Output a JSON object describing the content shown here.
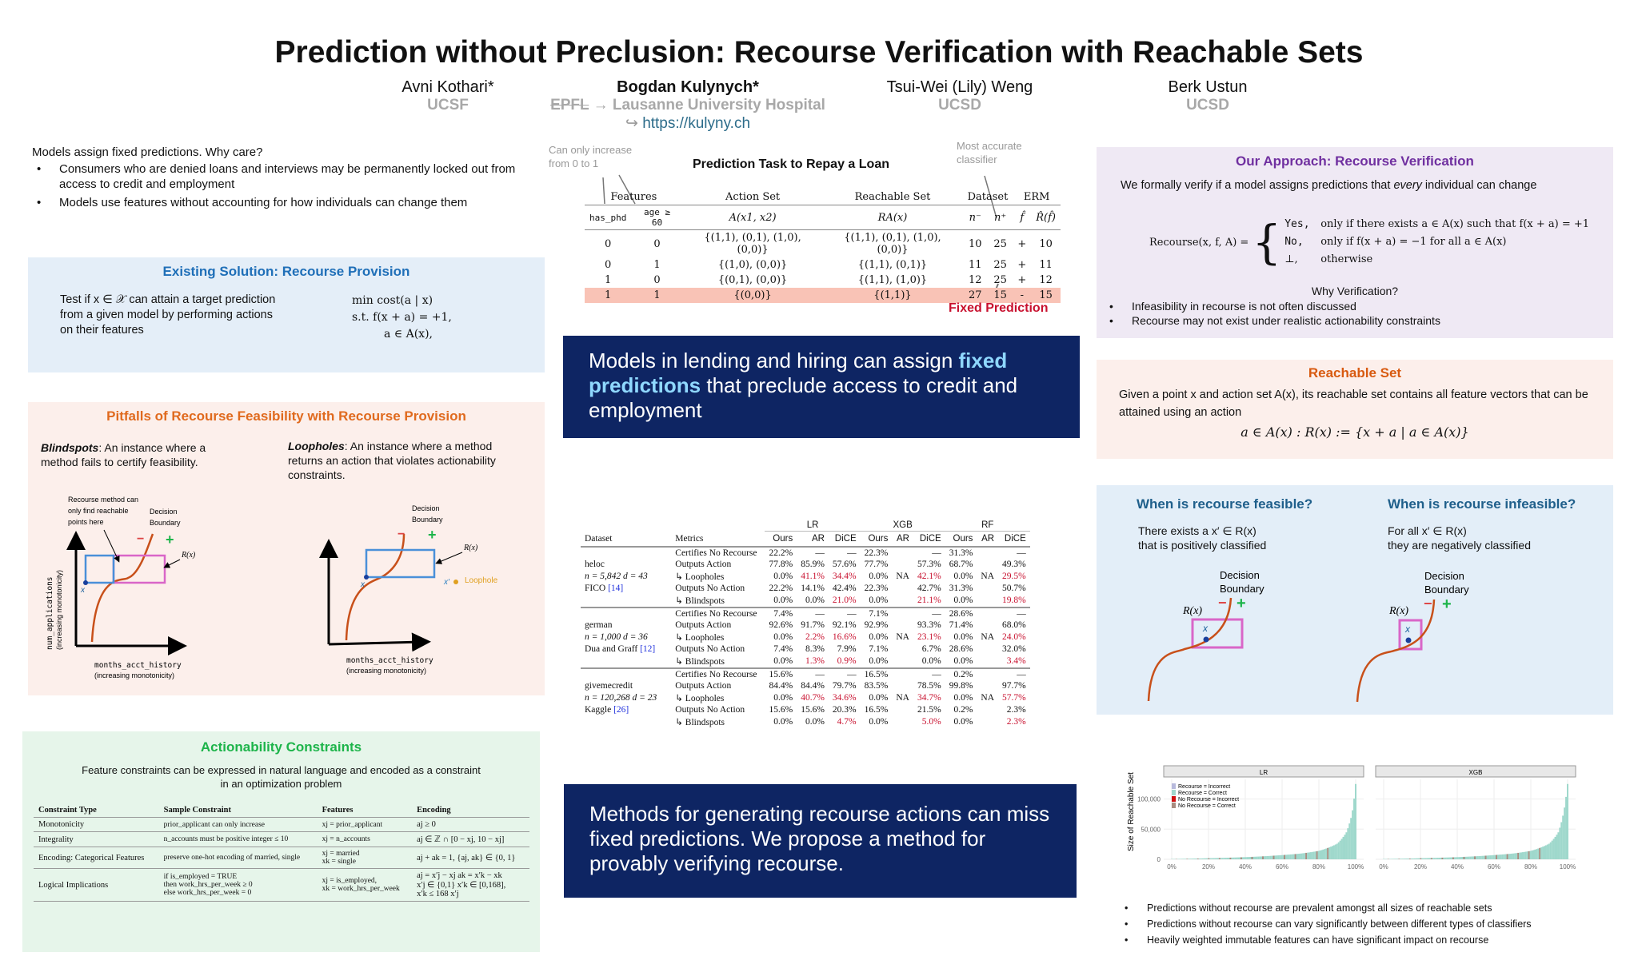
{
  "title": "Prediction without Preclusion: Recourse Verification with Reachable Sets",
  "authors": [
    {
      "name": "Avni Kothari*",
      "aff": "UCSF"
    },
    {
      "name": "Bogdan Kulynych*",
      "aff_struck": "EPFL",
      "aff": "→ Lausanne University Hospital",
      "link": "https://kulyny.ch",
      "link_prefix": "↪"
    },
    {
      "name": "Tsui-Wei (Lily) Weng",
      "aff": "UCSD"
    },
    {
      "name": "Berk Ustun",
      "aff": "UCSD"
    }
  ],
  "intro": {
    "lead": "Models assign fixed predictions. Why care?",
    "bullets": [
      "Consumers who are denied loans and interviews may be  permanently locked out from access to credit and employment",
      "Models use features without accounting for how individuals can change them"
    ]
  },
  "existing": {
    "title": "Existing Solution: Recourse Provision",
    "text": "Test if x ∈ 𝒳 can attain a target prediction from a given model by performing actions on their features",
    "opt": [
      "min   cost(a | x)",
      "s.t.   f(x + a) = +1,",
      "a ∈ A(x),"
    ]
  },
  "pitfalls": {
    "title": "Pitfalls of  Recourse Feasibility with Recourse Provision",
    "blind_term": "Blindspots",
    "blind_text": ": An instance where a method fails to certify feasibility.",
    "loop_term": "Loopholes",
    "loop_text": ": An instance where a method returns an action that violates actionability constraints.",
    "note": [
      "Recourse method can",
      "only find reachable",
      "points here"
    ],
    "db": [
      "Decision",
      "Boundary"
    ],
    "minus": "−",
    "plus": "+",
    "rx": "R(x)",
    "x": "x",
    "xp": "x′",
    "loophole": "Loophole",
    "xaxis": [
      "months_acct_history",
      "(increasing monotonicity)"
    ],
    "yaxis": [
      "num_applications",
      "(increasing monotonicity)"
    ]
  },
  "actionability": {
    "title": "Actionability Constraints",
    "text": "Feature constraints can be expressed in natural language and encoded as a constraint in an optimization problem",
    "headers": [
      "Constraint Type",
      "Sample Constraint",
      "Features",
      "Encoding"
    ],
    "rows": [
      [
        "Monotonicity",
        "prior_applicant can only increase",
        "xj = prior_applicant",
        "aj ≥ 0"
      ],
      [
        "Integrality",
        "n_accounts must be positive integer ≤ 10",
        "xj = n_accounts",
        "aj ∈ ℤ ∩ [0 − xj, 10 − xj]"
      ],
      [
        "Encoding: Categorical Features",
        "preserve one-hot encoding of married, single",
        "xj = married\nxk = single",
        "aj + ak = 1,  {aj, ak} ∈ {0, 1}"
      ],
      [
        "Logical Implications",
        "if is_employed = TRUE\nthen work_hrs_per_week ≥ 0\nelse work_hrs_per_week = 0",
        "xj = is_employed,\nxk = work_hrs_per_week",
        "aj = x′j − xj   ak = x′k − xk\nx′j ∈ {0,1}   x′k ∈ [0,168],\nx′k ≤ 168 x′j"
      ]
    ]
  },
  "prediction": {
    "title": "Prediction Task to Repay a Loan",
    "note_left": [
      "Can only increase",
      "from 0 to 1"
    ],
    "note_right": [
      "Most accurate",
      "classifier"
    ],
    "fixed": "Fixed Prediction",
    "groups": [
      "Features",
      "Action Set",
      "Reachable Set",
      "Dataset",
      "ERM"
    ],
    "headers": [
      "has_phd",
      "age ≥ 60",
      "A(x1, x2)",
      "RA(x)",
      "n⁻",
      "n⁺",
      "f̂",
      "R̂(f̂)"
    ],
    "rows": [
      [
        "0",
        "0",
        "{(1,1), (0,1), (1,0), (0,0)}",
        "{(1,1), (0,1), (1,0), (0,0)}",
        "10",
        "25",
        "+",
        "10"
      ],
      [
        "0",
        "1",
        "{(1,0), (0,0)}",
        "{(1,1), (0,1)}",
        "11",
        "25",
        "+",
        "11"
      ],
      [
        "1",
        "0",
        "{(0,1), (0,0)}",
        "{(1,1), (1,0)}",
        "12",
        "25",
        "+",
        "12"
      ],
      [
        "1",
        "1",
        "{(0,0)}",
        "{(1,1)}",
        "27",
        "15",
        "-",
        "15"
      ]
    ]
  },
  "banner1": {
    "pre": "Models in lending and hiring can assign ",
    "hl": "fixed predictions",
    "post": " that preclude access to credit and employment"
  },
  "results": {
    "models": [
      "LR",
      "XGB",
      "RF"
    ],
    "headers": [
      "Dataset",
      "Metrics",
      "Ours",
      "AR",
      "DiCE",
      "Ours",
      "AR",
      "DiCE",
      "Ours",
      "AR",
      "DiCE"
    ],
    "metrics": [
      "Certifies No Recourse",
      "Outputs Action",
      "↳ Loopholes",
      "Outputs No Action",
      "↳ Blindspots"
    ],
    "datasets": [
      {
        "name": "heloc",
        "stats": "n = 5,842  d = 43",
        "src": "FICO",
        "ref": "[14]",
        "vals": [
          [
            "22.2%",
            "—",
            "—",
            "22.3%",
            "",
            "—",
            "31.3%",
            "",
            "—"
          ],
          [
            "77.8%",
            "85.9%",
            "57.6%",
            "77.7%",
            "",
            "57.3%",
            "68.7%",
            "",
            "49.3%"
          ],
          [
            "0.0%",
            "41.1%",
            "34.4%",
            "0.0%",
            "NA",
            "42.1%",
            "0.0%",
            "NA",
            "29.5%"
          ],
          [
            "22.2%",
            "14.1%",
            "42.4%",
            "22.3%",
            "",
            "42.7%",
            "31.3%",
            "",
            "50.7%"
          ],
          [
            "0.0%",
            "0.0%",
            "21.0%",
            "0.0%",
            "",
            "21.1%",
            "0.0%",
            "",
            "19.8%"
          ]
        ],
        "style": [
          "",
          "",
          "",
          "brrbnrbnr",
          "",
          "bnrbnrbnr"
        ]
      },
      {
        "name": "german",
        "stats": "n = 1,000  d = 36",
        "src": "Dua and Graff",
        "ref": "[12]",
        "vals": [
          [
            "7.4%",
            "—",
            "—",
            "7.1%",
            "",
            "—",
            "28.6%",
            "",
            "—"
          ],
          [
            "92.6%",
            "91.7%",
            "92.1%",
            "92.9%",
            "",
            "93.3%",
            "71.4%",
            "",
            "68.0%"
          ],
          [
            "0.0%",
            "2.2%",
            "16.6%",
            "0.0%",
            "NA",
            "23.1%",
            "0.0%",
            "NA",
            "24.0%"
          ],
          [
            "7.4%",
            "8.3%",
            "7.9%",
            "7.1%",
            "",
            "6.7%",
            "28.6%",
            "",
            "32.0%"
          ],
          [
            "0.0%",
            "1.3%",
            "0.9%",
            "0.0%",
            "",
            "0.0%",
            "0.0%",
            "",
            "3.4%"
          ]
        ],
        "style": [
          "",
          "",
          "",
          "brrbnrbnr",
          "",
          "brrnnnbnr"
        ]
      },
      {
        "name": "givemecredit",
        "stats": "n = 120,268  d = 23",
        "src": "Kaggle",
        "ref": "[26]",
        "vals": [
          [
            "15.6%",
            "—",
            "—",
            "16.5%",
            "",
            "—",
            "0.2%",
            "",
            "—"
          ],
          [
            "84.4%",
            "84.4%",
            "79.7%",
            "83.5%",
            "",
            "78.5%",
            "99.8%",
            "",
            "97.7%"
          ],
          [
            "0.0%",
            "40.7%",
            "34.6%",
            "0.0%",
            "NA",
            "34.7%",
            "0.0%",
            "NA",
            "57.7%"
          ],
          [
            "15.6%",
            "15.6%",
            "20.3%",
            "16.5%",
            "",
            "21.5%",
            "0.2%",
            "",
            "2.3%"
          ],
          [
            "0.0%",
            "0.0%",
            "4.7%",
            "0.0%",
            "",
            "5.0%",
            "0.0%",
            "",
            "2.3%"
          ]
        ],
        "style": [
          "",
          "",
          "",
          "brrbnrbnr",
          "",
          "bnrbnrbnr"
        ]
      }
    ]
  },
  "banner2": {
    "text": "Methods for generating recourse actions can miss fixed predictions. We propose a method for provably verifying recourse."
  },
  "approach": {
    "title": "Our Approach: Recourse Verification",
    "lead_pre": "We formally verify if a model assigns predictions that ",
    "lead_em": "every",
    "lead_post": " individual can change",
    "lhs": "Recourse(x, f, A) =",
    "cases": [
      [
        "Yes,",
        "only if there exists a ∈ A(x) such that f(x + a) = +1"
      ],
      [
        "No,",
        "only if f(x + a) = −1 for all a ∈ A(x)"
      ],
      [
        "⊥,",
        "otherwise"
      ]
    ],
    "why": "Why Verification?",
    "bullets": [
      "Infeasibility in recourse is not often discussed",
      "Recourse may not exist under realistic actionability constraints"
    ]
  },
  "reachable": {
    "title": "Reachable Set",
    "text": "Given a point x and action set A(x), its reachable set contains all feature vectors that can be attained using an action",
    "formula": "a ∈ A(x) : R(x) := {x + a | a ∈ A(x)}"
  },
  "feasible": {
    "title": "When is recourse feasible?",
    "text": [
      "There exists a x′ ∈ R(x)",
      "that is positively classified"
    ]
  },
  "infeasible": {
    "title": "When is recourse infeasible?",
    "text": [
      "For all x′ ∈ R(x)",
      "they are negatively classified"
    ]
  },
  "colors": {
    "navy": "#0e2563",
    "purple": "#7030a0",
    "orange": "#e06a1e",
    "green": "#1db44a",
    "teal": "#1f5f8b",
    "red": "#c8102e",
    "curve": "#c8501a",
    "pink": "#d966c8",
    "blue": "#4a90d9",
    "bar": "#8fd0c4"
  },
  "chart_data": {
    "type": "bar",
    "ylabel": "Size of Reachable Set",
    "yticks": [
      "0",
      "50,000",
      "100,000"
    ],
    "ylim": [
      0,
      130000
    ],
    "xticks": [
      "0%",
      "20%",
      "40%",
      "60%",
      "80%",
      "100%"
    ],
    "legend": [
      "Recourse = Incorrect",
      "Recourse = Correct",
      "No Recourse = Incorrect",
      "No Recourse = Correct"
    ],
    "legend_colors": [
      "#b7b9dc",
      "#9fd8cc",
      "#d01010",
      "#a88c80"
    ],
    "legend_position": "top-left",
    "panels": [
      {
        "name": "LR",
        "percentile": [
          0,
          10,
          20,
          30,
          40,
          50,
          60,
          70,
          80,
          85,
          90,
          95,
          98,
          100
        ],
        "values": [
          500,
          1000,
          1800,
          2600,
          3600,
          5000,
          7000,
          9500,
          14000,
          19000,
          26000,
          45000,
          75000,
          125000
        ]
      },
      {
        "name": "XGB",
        "percentile": [
          0,
          10,
          20,
          30,
          40,
          50,
          60,
          70,
          80,
          85,
          90,
          95,
          98,
          100
        ],
        "values": [
          500,
          1000,
          1800,
          2600,
          3600,
          5000,
          7000,
          9500,
          14000,
          19000,
          26000,
          45000,
          80000,
          125000
        ]
      }
    ]
  },
  "takeaways": [
    "Predictions without recourse are prevalent amongst all sizes of reachable sets",
    "Predictions without recourse can vary significantly between different types of classifiers",
    "Heavily weighted immutable features can have significant impact on recourse"
  ]
}
